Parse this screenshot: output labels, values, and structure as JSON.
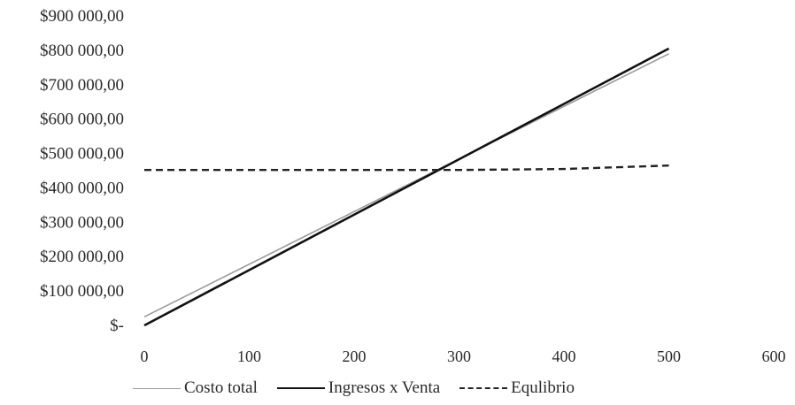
{
  "chart_data": {
    "type": "line",
    "title": "",
    "xlabel": "",
    "ylabel": "",
    "xlim": [
      0,
      600
    ],
    "ylim": [
      0,
      900000
    ],
    "x_ticks": [
      0,
      100,
      200,
      300,
      400,
      500,
      600
    ],
    "x_tick_labels": [
      "0",
      "100",
      "200",
      "300",
      "400",
      "500",
      "600"
    ],
    "y_ticks": [
      0,
      100000,
      200000,
      300000,
      400000,
      500000,
      600000,
      700000,
      800000,
      900000
    ],
    "y_tick_labels": [
      "$-",
      "$100 000,00",
      "$200 000,00",
      "$300 000,00",
      "$400 000,00",
      "$500 000,00",
      "$600 000,00",
      "$700 000,00",
      "$800 000,00",
      "$900 000,00"
    ],
    "grid": false,
    "legend_position": "bottom",
    "series": [
      {
        "name": "Costo total",
        "x": [
          0,
          500
        ],
        "y": [
          25000,
          790000
        ],
        "color": "#9a9a9a",
        "style": "solid"
      },
      {
        "name": "Ingresos x Venta",
        "x": [
          0,
          500
        ],
        "y": [
          0,
          805000
        ],
        "color": "#111111",
        "style": "solid"
      },
      {
        "name": "Equlibrio",
        "x": [
          0,
          300,
          400,
          500
        ],
        "y": [
          452000,
          452000,
          455000,
          465000
        ],
        "color": "#222222",
        "style": "dashed"
      }
    ]
  },
  "legend": {
    "costo_label": "Costo total",
    "ingresos_label": "Ingresos x Venta",
    "equilibrio_label": "Equlibrio"
  }
}
